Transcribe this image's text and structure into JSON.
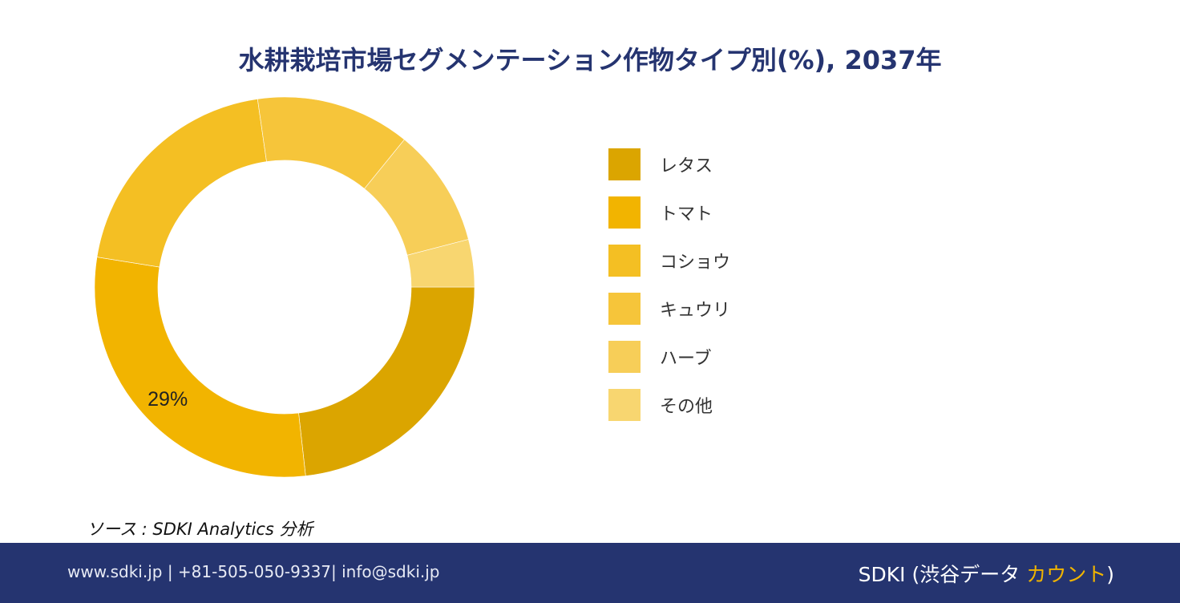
{
  "chart_data": {
    "type": "pie",
    "title": "水耕栽培市場セグメンテーション作物タイプ別(%), 2037年",
    "categories": [
      "レタス",
      "トマト",
      "コショウ",
      "キュウリ",
      "ハーブ",
      "その他"
    ],
    "values": [
      23,
      29,
      20,
      13,
      10,
      4
    ],
    "colors": [
      "#DBA500",
      "#F2B400",
      "#F4BF23",
      "#F6C53A",
      "#F7CE58",
      "#F8D670"
    ],
    "data_labels": [
      {
        "category": "トマト",
        "text": "29%"
      }
    ],
    "legend_position": "right"
  },
  "source_text": "ソース : SDKI Analytics 分析",
  "footer": {
    "contact": "www.sdki.jp | +81-505-050-9337| info@sdki.jp",
    "brand_prefix": "SDKI (渋谷データ ",
    "brand_accent": "カウント",
    "brand_suffix": ")"
  }
}
